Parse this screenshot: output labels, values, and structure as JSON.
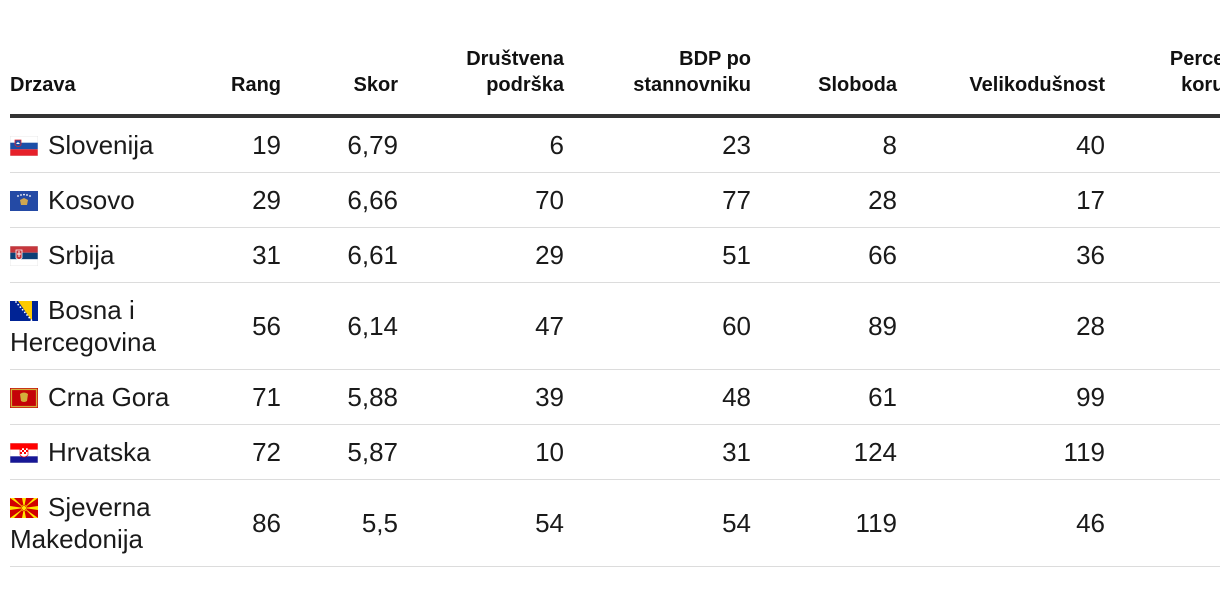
{
  "table": {
    "headers": {
      "country": "Drzava",
      "rank": "Rang",
      "score": "Skor",
      "social_support": "Društvena podrška",
      "gdp": "BDP po stannovniku",
      "freedom": "Sloboda",
      "generosity": "Velikodušnost",
      "corruption": "Percepcija korupcije"
    },
    "rows": [
      {
        "flag": "slovenia-flag",
        "country": "Slovenija",
        "rank": "19",
        "score": "6,79",
        "social_support": "6",
        "gdp": "23",
        "freedom": "8",
        "generosity": "40",
        "corruption": ""
      },
      {
        "flag": "kosovo-flag",
        "country": "Kosovo",
        "rank": "29",
        "score": "6,66",
        "social_support": "70",
        "gdp": "77",
        "freedom": "28",
        "generosity": "17",
        "corruption": ""
      },
      {
        "flag": "serbia-flag",
        "country": "Srbija",
        "rank": "31",
        "score": "6,61",
        "social_support": "29",
        "gdp": "51",
        "freedom": "66",
        "generosity": "36",
        "corruption": ""
      },
      {
        "flag": "bosnia-flag",
        "country": "Bosna i Hercegovina",
        "rank": "56",
        "score": "6,14",
        "social_support": "47",
        "gdp": "60",
        "freedom": "89",
        "generosity": "28",
        "corruption": ""
      },
      {
        "flag": "montenegro-flag",
        "country": "Crna Gora",
        "rank": "71",
        "score": "5,88",
        "social_support": "39",
        "gdp": "48",
        "freedom": "61",
        "generosity": "99",
        "corruption": ""
      },
      {
        "flag": "croatia-flag",
        "country": "Hrvatska",
        "rank": "72",
        "score": "5,87",
        "social_support": "10",
        "gdp": "31",
        "freedom": "124",
        "generosity": "119",
        "corruption": ""
      },
      {
        "flag": "north-macedonia-flag",
        "country": "Sjeverna Makedonija",
        "rank": "86",
        "score": "5,5",
        "social_support": "54",
        "gdp": "54",
        "freedom": "119",
        "generosity": "46",
        "corruption": ""
      }
    ]
  }
}
